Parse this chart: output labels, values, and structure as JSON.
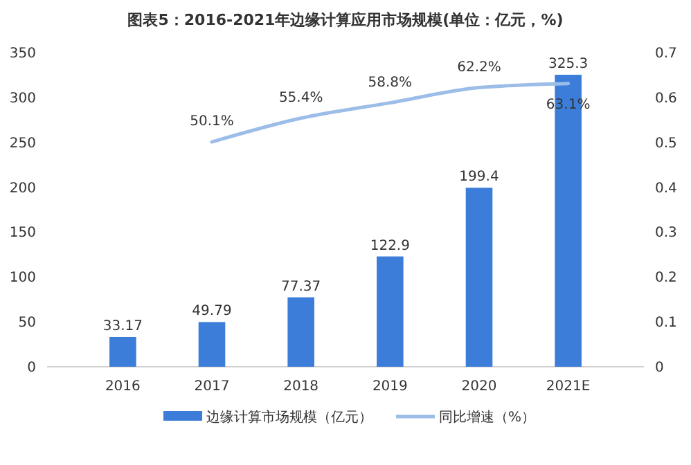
{
  "chart_data": {
    "type": "bar",
    "title": "图表5：2016-2021年边缘计算应用市场规模(单位：亿元，%)",
    "categories": [
      "2016",
      "2017",
      "2018",
      "2019",
      "2020",
      "2021E"
    ],
    "series": [
      {
        "name": "边缘计算市场规模（亿元）",
        "color": "#3b7dd8",
        "values": [
          33.17,
          49.79,
          77.37,
          122.9,
          199.4,
          325.3
        ],
        "value_labels": [
          "33.17",
          "49.79",
          "77.37",
          "122.9",
          "199.4",
          "325.3"
        ]
      },
      {
        "name": "同比增速（%）",
        "type": "line",
        "axis": "y2",
        "color": "#9cbde8",
        "values": [
          null,
          0.501,
          0.554,
          0.588,
          0.622,
          0.631
        ],
        "value_labels": [
          null,
          "50.1%",
          "55.4%",
          "58.8%",
          "62.2%",
          "63.1%"
        ]
      }
    ],
    "ylim": [
      0,
      350
    ],
    "yticks": [
      0,
      50,
      100,
      150,
      200,
      250,
      300,
      350
    ],
    "y2lim": [
      0,
      0.7
    ],
    "y2ticks": [
      0,
      0.1,
      0.2,
      0.3,
      0.4,
      0.5,
      0.6,
      0.7
    ],
    "legend": "bottom",
    "marker": "none",
    "line_style": "solid"
  }
}
